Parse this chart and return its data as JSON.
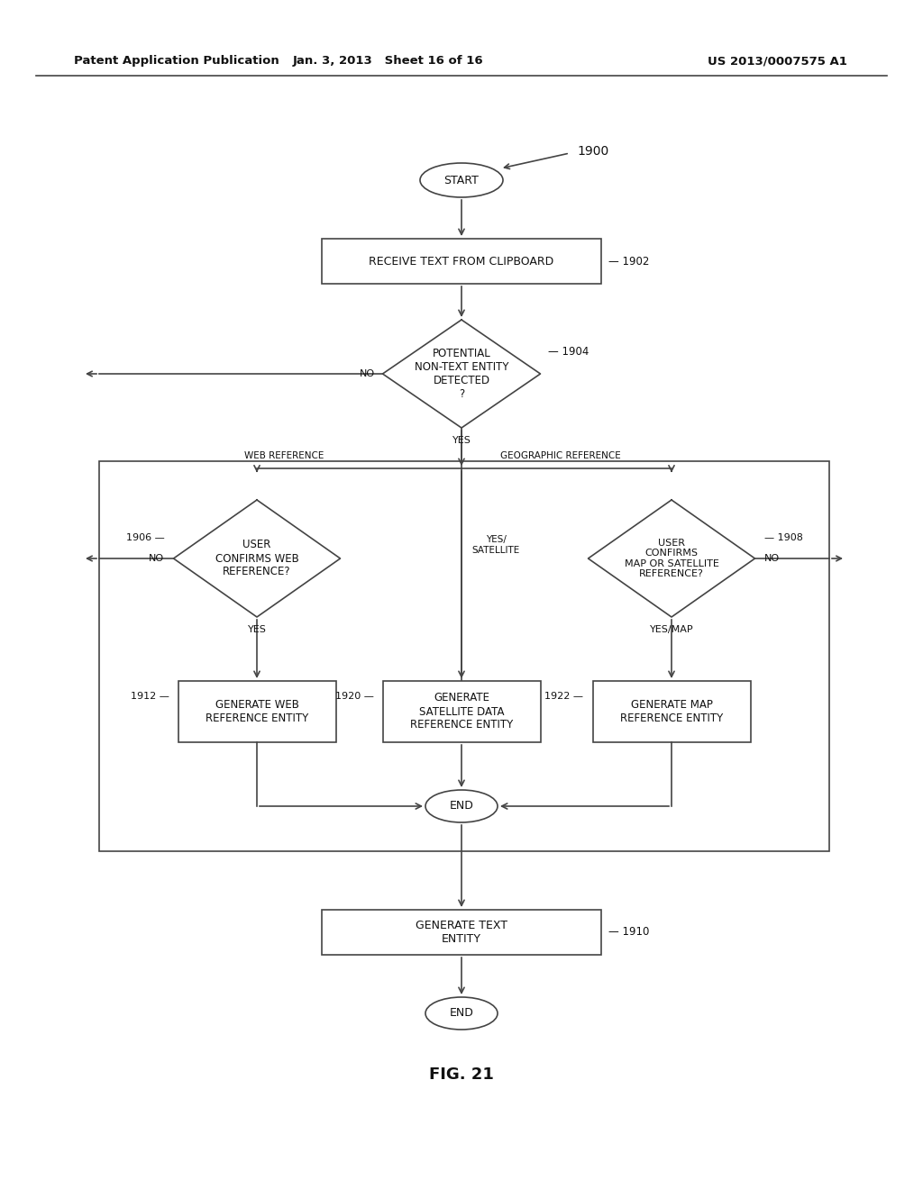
{
  "header_left": "Patent Application Publication",
  "header_mid": "Jan. 3, 2013   Sheet 16 of 16",
  "header_right": "US 2013/0007575 A1",
  "fig_label": "FIG. 21",
  "background": "#ffffff",
  "line_color": "#444444",
  "text_color": "#111111"
}
